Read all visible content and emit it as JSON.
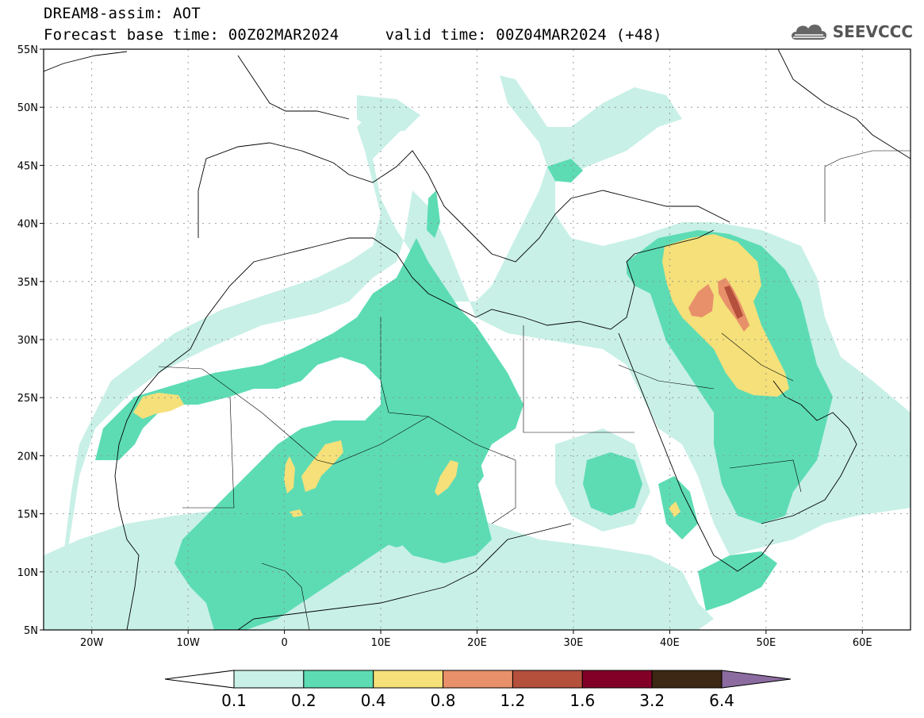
{
  "header": {
    "title_line1": "DREAM8-assim: AOT",
    "title_line2": "Forecast base time: 00Z02MAR2024     valid time: 00Z04MAR2024 (+48)",
    "logo_text": "SEEVCCC"
  },
  "map": {
    "projection": "lat-lon",
    "lon_range": [
      -25,
      65
    ],
    "lat_range": [
      5,
      55
    ],
    "lon_ticks": [
      {
        "value": -20,
        "label": "20W"
      },
      {
        "value": -10,
        "label": "10W"
      },
      {
        "value": 0,
        "label": "0"
      },
      {
        "value": 10,
        "label": "10E"
      },
      {
        "value": 20,
        "label": "20E"
      },
      {
        "value": 30,
        "label": "30E"
      },
      {
        "value": 40,
        "label": "40E"
      },
      {
        "value": 50,
        "label": "50E"
      },
      {
        "value": 60,
        "label": "60E"
      }
    ],
    "lat_ticks": [
      {
        "value": 5,
        "label": "5N"
      },
      {
        "value": 10,
        "label": "10N"
      },
      {
        "value": 15,
        "label": "15N"
      },
      {
        "value": 20,
        "label": "20N"
      },
      {
        "value": 25,
        "label": "25N"
      },
      {
        "value": 30,
        "label": "30N"
      },
      {
        "value": 35,
        "label": "35N"
      },
      {
        "value": 40,
        "label": "40N"
      },
      {
        "value": 45,
        "label": "45N"
      },
      {
        "value": 50,
        "label": "50N"
      },
      {
        "value": 55,
        "label": "55N"
      }
    ],
    "gridlines": "dotted"
  },
  "colorbar": {
    "levels": [
      "0.1",
      "0.2",
      "0.4",
      "0.8",
      "1.2",
      "1.6",
      "3.2",
      "6.4"
    ],
    "colors": [
      "#ffffff",
      "#c8f0e6",
      "#5ddcb4",
      "#f5e07a",
      "#e8906a",
      "#b4503c",
      "#820028",
      "#3c2814",
      "#8c6ca0"
    ]
  }
}
